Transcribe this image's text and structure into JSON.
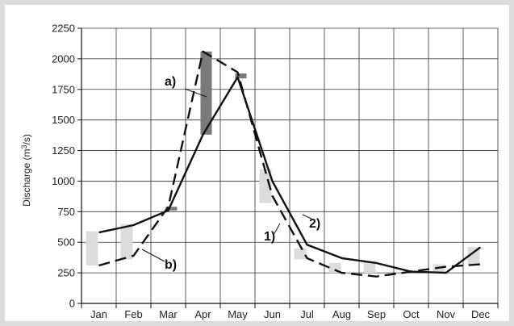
{
  "chart_data": {
    "type": "line",
    "ylabel_main": "Discharge (m",
    "ylabel_sup": "3",
    "ylabel_end": "/s)",
    "xlabel": "",
    "ylim": [
      0,
      2250
    ],
    "yticks": [
      0,
      250,
      500,
      750,
      1000,
      1250,
      1500,
      1750,
      2000,
      2250
    ],
    "categories": [
      "Jan",
      "Feb",
      "Mar",
      "Apr",
      "May",
      "Jun",
      "Jul",
      "Aug",
      "Sep",
      "Oct",
      "Nov",
      "Dec"
    ],
    "series": [
      {
        "name": "1)",
        "style": "dashed",
        "color": "#111111",
        "values": [
          310,
          390,
          790,
          2060,
          1890,
          880,
          370,
          250,
          220,
          260,
          300,
          320
        ]
      },
      {
        "name": "2)",
        "style": "solid",
        "color": "#111111",
        "values": [
          580,
          640,
          760,
          1380,
          1850,
          1000,
          480,
          370,
          330,
          260,
          250,
          460
        ]
      }
    ],
    "ranges": [
      {
        "kind": "b",
        "color": "#dcdcdc",
        "bars": [
          [
            310,
            590
          ],
          [
            360,
            650
          ],
          null,
          null,
          null,
          [
            820,
            1100
          ],
          [
            360,
            450
          ],
          [
            250,
            330
          ],
          [
            250,
            340
          ],
          null,
          [
            250,
            320
          ],
          [
            310,
            460
          ]
        ]
      },
      {
        "kind": "a",
        "color": "#7a7a7a",
        "bars": [
          null,
          null,
          [
            760,
            790
          ],
          [
            1380,
            2060
          ],
          [
            1840,
            1880
          ],
          null,
          null,
          null,
          null,
          null,
          null,
          null
        ]
      }
    ],
    "annotations": [
      "a)",
      "b)",
      "1)",
      "2)"
    ],
    "grid": true
  }
}
